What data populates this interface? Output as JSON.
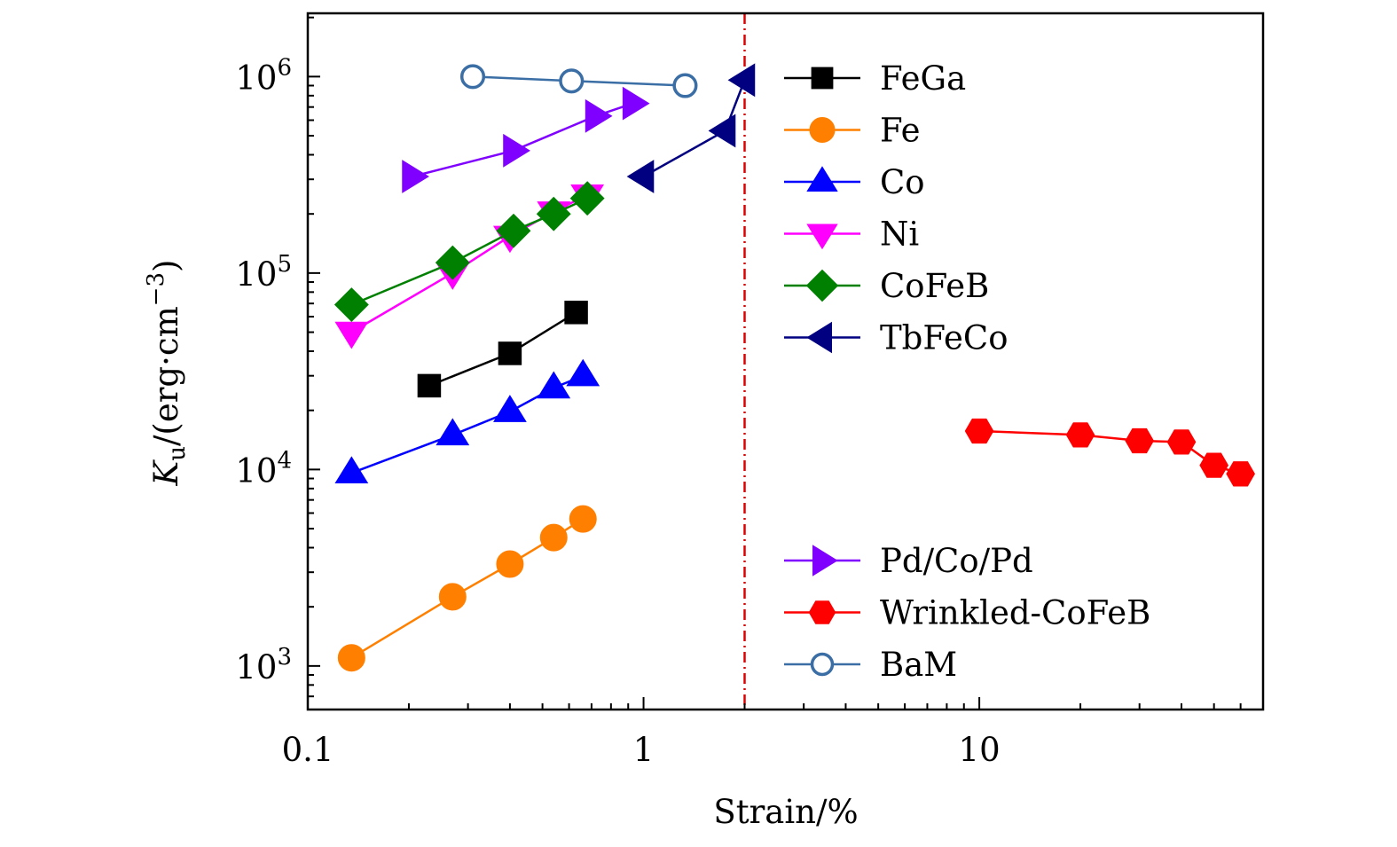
{
  "chart_data": {
    "type": "scatter",
    "title": "",
    "xlabel": "Strain/%",
    "ylabel_main": "K",
    "ylabel_sub": "u",
    "ylabel_rest": "/(erg·cm",
    "ylabel_sup": "−3",
    "ylabel_close": ")",
    "xscale": "log",
    "yscale": "log",
    "xlim": [
      0.1,
      70
    ],
    "ylim": [
      600,
      2100000
    ],
    "grid": false,
    "x_ticks": [
      {
        "value": 0.1,
        "label": "0.1"
      },
      {
        "value": 1,
        "label": "1"
      },
      {
        "value": 10,
        "label": "10"
      }
    ],
    "y_ticks": [
      {
        "value": 1000,
        "base": "10",
        "exp": "3"
      },
      {
        "value": 10000,
        "base": "10",
        "exp": "4"
      },
      {
        "value": 100000,
        "base": "10",
        "exp": "5"
      },
      {
        "value": 1000000,
        "base": "10",
        "exp": "6"
      }
    ],
    "reference_line": {
      "x": 2,
      "color": "#e00000",
      "style": "dash-dot"
    },
    "legend_placement": "right, inside plot",
    "series": [
      {
        "name": "FeGa",
        "color": "#000000",
        "marker": "square",
        "filled": true,
        "x": [
          0.23,
          0.4,
          0.63
        ],
        "y": [
          26700,
          39000,
          63000
        ]
      },
      {
        "name": "Fe",
        "color": "#ff8000",
        "marker": "circle",
        "filled": true,
        "x": [
          0.135,
          0.27,
          0.4,
          0.54,
          0.66
        ],
        "y": [
          1100,
          2250,
          3300,
          4500,
          5600
        ]
      },
      {
        "name": "Co",
        "color": "#0000ff",
        "marker": "triangle-up",
        "filled": true,
        "x": [
          0.135,
          0.27,
          0.4,
          0.54,
          0.66
        ],
        "y": [
          9600,
          15000,
          19700,
          26000,
          30000
        ]
      },
      {
        "name": "Ni",
        "color": "#ff00ff",
        "marker": "triangle-down",
        "filled": true,
        "x": [
          0.135,
          0.27,
          0.4,
          0.54,
          0.68
        ],
        "y": [
          50000,
          100000,
          154000,
          205000,
          250000
        ]
      },
      {
        "name": "CoFeB",
        "color": "#008000",
        "marker": "diamond",
        "filled": true,
        "x": [
          0.135,
          0.27,
          0.41,
          0.54,
          0.68
        ],
        "y": [
          69000,
          113000,
          164000,
          200000,
          240000
        ]
      },
      {
        "name": "TbFeCo",
        "color": "#000080",
        "marker": "triangle-left",
        "filled": true,
        "x": [
          1.0,
          1.75,
          2.0
        ],
        "y": [
          310000,
          530000,
          960000
        ]
      },
      {
        "name": "Pd/Co/Pd",
        "color": "#8000ff",
        "marker": "triangle-right",
        "filled": true,
        "x": [
          0.205,
          0.41,
          0.72,
          0.93
        ],
        "y": [
          310000,
          420000,
          630000,
          730000
        ]
      },
      {
        "name": "Wrinkled-CoFeB",
        "color": "#ff0000",
        "marker": "hexagon",
        "filled": true,
        "x": [
          10,
          20,
          30,
          40,
          50,
          60
        ],
        "y": [
          15700,
          15000,
          14000,
          13800,
          10500,
          9500
        ]
      },
      {
        "name": "BaM",
        "color": "#3a6ea5",
        "marker": "circle",
        "filled": false,
        "x": [
          0.31,
          0.61,
          1.33
        ],
        "y": [
          1000000,
          950000,
          900000
        ]
      }
    ],
    "legend_groups": [
      [
        "FeGa",
        "Fe",
        "Co",
        "Ni",
        "CoFeB",
        "TbFeCo"
      ],
      [
        "Pd/Co/Pd",
        "Wrinkled-CoFeB",
        "BaM"
      ]
    ]
  }
}
